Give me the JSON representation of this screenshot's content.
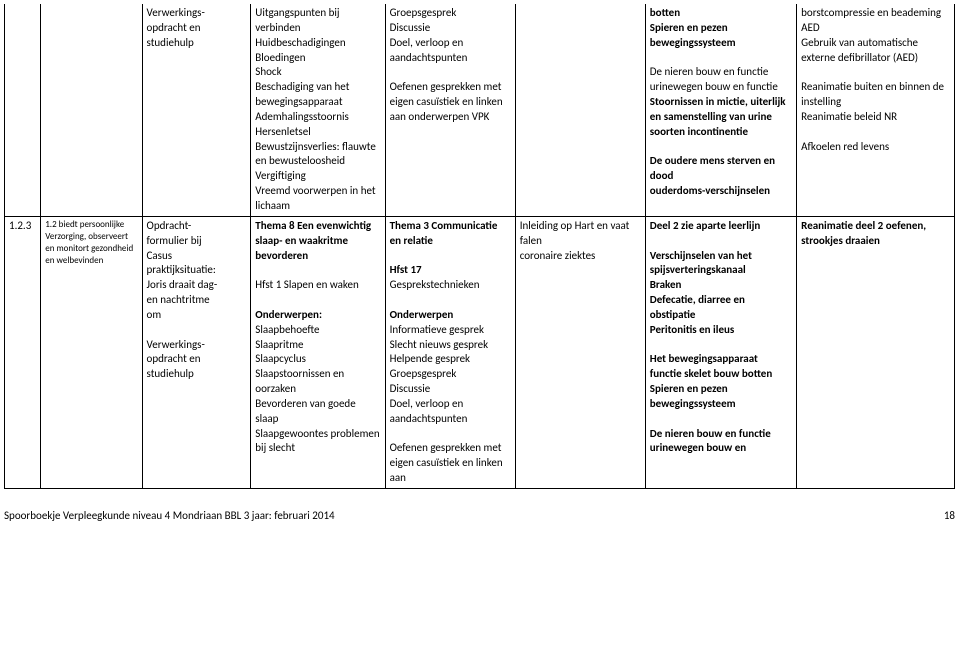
{
  "row1": {
    "c": "Verwerkings-\nopdracht en\nstudiehulp",
    "d": "Uitgangspunten bij verbinden\nHuidbeschadigingen\nBloedingen\nShock\nBeschadiging van het bewegingsapparaat\nAdemhalingsstoornis\nHersenletsel\nBewustzijnsverlies: flauwte en bewusteloosheid\nVergiftiging\nVreemd voorwerpen in het lichaam",
    "e": "Groepsgesprek\nDiscussie\nDoel, verloop en aandachtspunten\n\nOefenen gesprekken met eigen casuïstiek en linken aan onderwerpen VPK",
    "g_bold1": "botten\nSpieren en pezen\nbewegingssysteem\n",
    "g_mid": "\nDe nieren bouw en functie\nurinewegen bouw en functie\n",
    "g_bold2": "Stoornissen in mictie, uiterlijk en samenstelling van urine soorten incontinentie\n\nDe oudere mens sterven en dood\nouderdoms-verschijnselen",
    "h": "borstcompressie en beademing\nAED\nGebruik van automatische externe defibrillator (AED)\n\nReanimatie buiten en binnen de instelling\nReanimatie beleid NR\n\nAfkoelen red levens"
  },
  "row2": {
    "a": "1.2.3",
    "b": "1.2 biedt persoonlijke Verzorging, observeert en monitort gezondheid en welbevinden",
    "c": "Opdracht-\nformulier bij\nCasus\npraktijksituatie:\n Joris draait dag-\nen nachtritme\nom\n\nVerwerkings-\nopdracht en\nstudiehulp",
    "d_title": "Thema 8 Een evenwichtig slaap- en waakritme bevorderen\n",
    "d_1": "\nHfst 1 Slapen en waken\n\n",
    "d_ond": "Onderwerpen:",
    "d_2": "\nSlaapbehoefte\nSlaapritme\nSlaapcyclus\nSlaapstoornissen en oorzaken\nBevorderen van goede slaap\nSlaapgewoontes problemen bij slecht",
    "e_title": "Thema 3 Communicatie en relatie\n",
    "e_hfst": "\nHfst 17\n",
    "e_1": "Gesprekstechnieken\n\n",
    "e_ond": "Onderwerpen",
    "e_2": "\nInformatieve gesprek\nSlecht nieuws gesprek\nHelpende gesprek\nGroepsgesprek\nDiscussie\nDoel, verloop en aandachtspunten\n\nOefenen gesprekken met eigen casuïstiek en linken aan",
    "f": "Inleiding op Hart en vaat falen\ncoronaire ziektes",
    "g_1": "Deel 2 zie aparte leerlijn\n",
    "g_2": "\nVerschijnselen van het spijsverteringskanaal\nBraken\nDefecatie, diarree en obstipatie\nPeritonitis en ileus\n\nHet bewegingsapparaat functie skelet bouw botten\nSpieren en pezen bewegingssysteem\n\nDe nieren bouw en functie\nurinewegen bouw en",
    "h": "Reanimatie deel 2 oefenen, strookjes draaien"
  },
  "footer": {
    "text": "Spoorboekje Verpleegkunde niveau 4 Mondriaan BBL 3 jaar: februari 2014",
    "page": "18"
  }
}
